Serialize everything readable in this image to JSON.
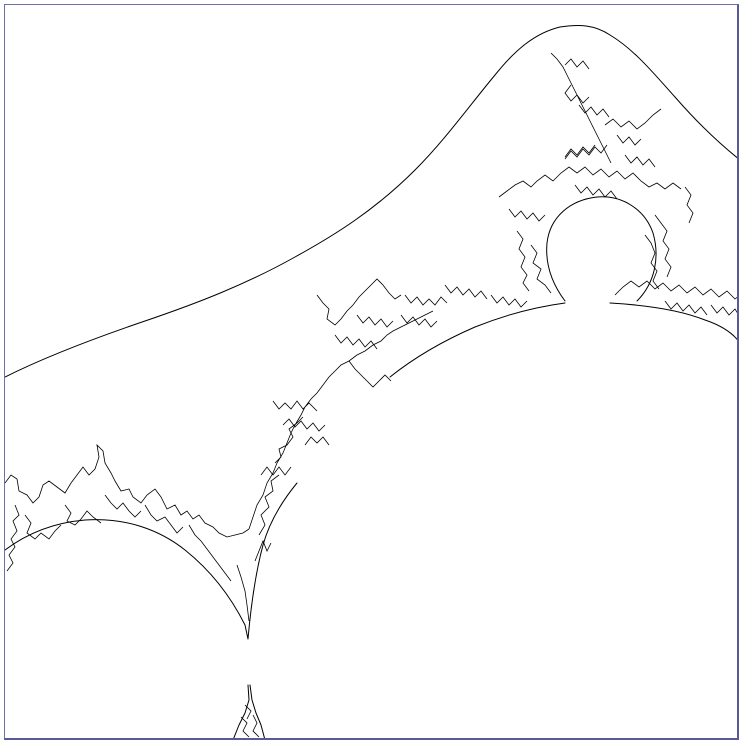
{
  "viewport": {
    "background_color": "#ffffff",
    "border_color": "#6e6ea8",
    "line_color": "#000000"
  },
  "image": {
    "subject": "fractal-boundary-outline",
    "render_style": "black edge-detected contour lines on white"
  }
}
